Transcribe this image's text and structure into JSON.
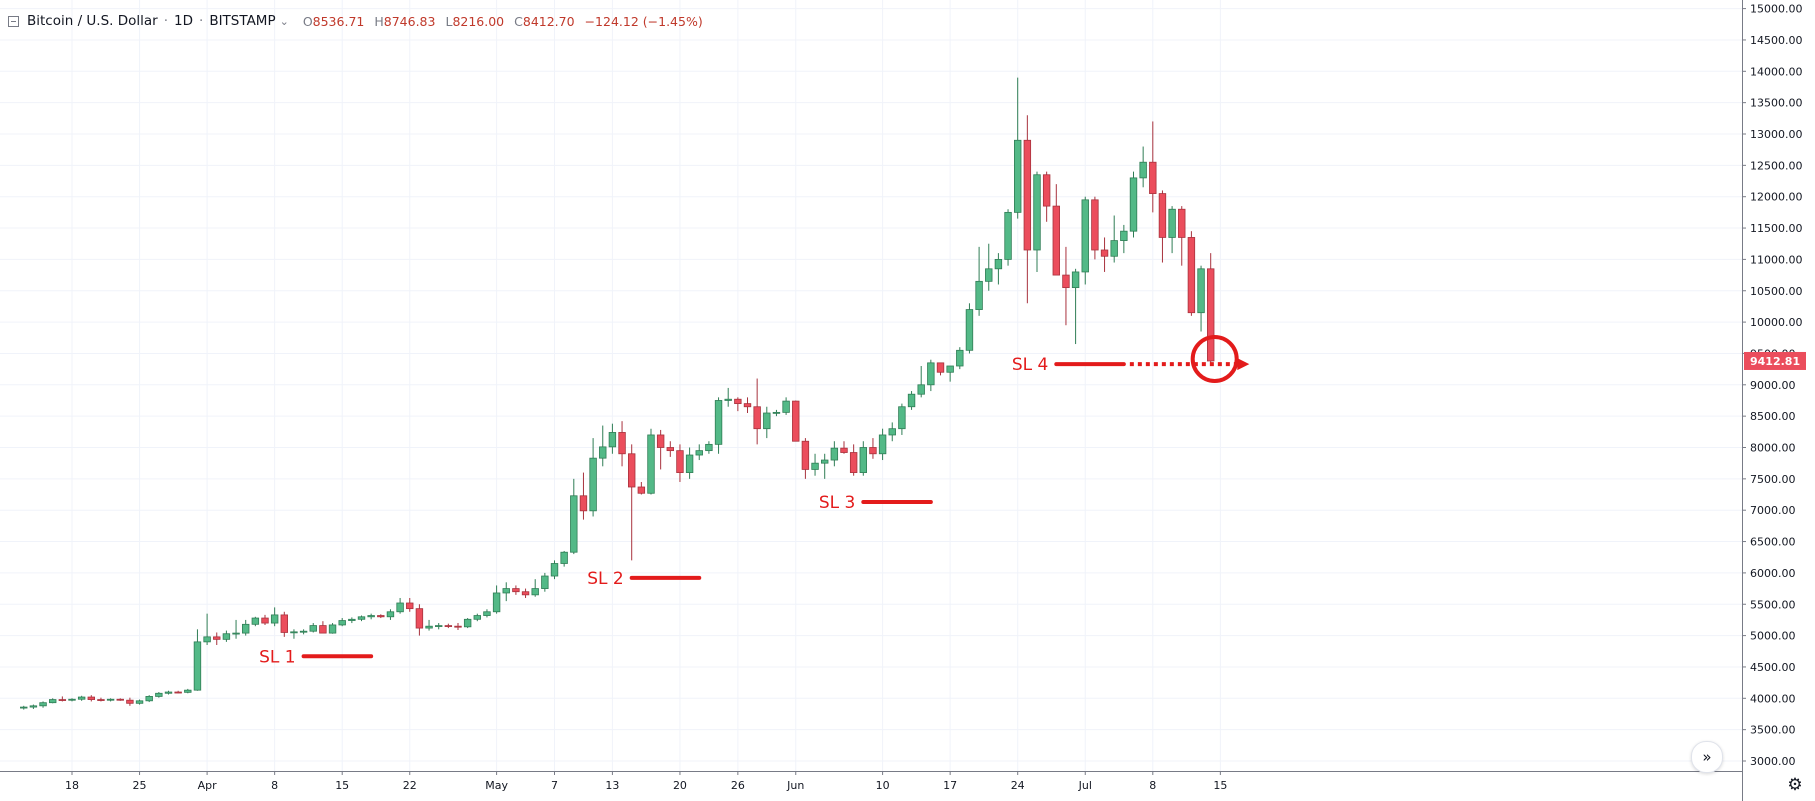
{
  "header": {
    "symbol": "Bitcoin / U.S. Dollar",
    "interval": "1D",
    "exchange": "BITSTAMP",
    "o": "8536.71",
    "h": "8746.83",
    "l": "8216.00",
    "c": "8412.70",
    "change": "−124.12 (−1.45%)",
    "o_label": "O",
    "h_label": "H",
    "l_label": "L",
    "c_label": "C"
  },
  "colors": {
    "up": "#53b987",
    "up_border": "#2f7d55",
    "down": "#eb4d5c",
    "down_border": "#a8323d",
    "grid": "#f0f3fa",
    "annotation": "#e31b1b"
  },
  "icons": {
    "collapse": "collapse-icon",
    "scroll": "scroll-right-icon",
    "settings": "gear-icon"
  },
  "chart_data": {
    "type": "candlestick",
    "ylim": [
      3000,
      15000
    ],
    "y_ticks": [
      "3000.00",
      "3500.00",
      "4000.00",
      "4500.00",
      "5000.00",
      "5500.00",
      "6000.00",
      "6500.00",
      "7000.00",
      "7500.00",
      "8000.00",
      "8500.00",
      "9000.00",
      "9500.00",
      "10000.00",
      "10500.00",
      "11000.00",
      "11500.00",
      "12000.00",
      "12500.00",
      "13000.00",
      "13500.00",
      "14000.00",
      "14500.00",
      "15000.00"
    ],
    "x_labels": [
      {
        "label": "18",
        "index": 0
      },
      {
        "label": "25",
        "index": 7
      },
      {
        "label": "Apr",
        "index": 14
      },
      {
        "label": "8",
        "index": 21
      },
      {
        "label": "15",
        "index": 28
      },
      {
        "label": "22",
        "index": 35
      },
      {
        "label": "May",
        "index": 44
      },
      {
        "label": "7",
        "index": 50
      },
      {
        "label": "13",
        "index": 56
      },
      {
        "label": "20",
        "index": 63
      },
      {
        "label": "26",
        "index": 69
      },
      {
        "label": "Jun",
        "index": 75
      },
      {
        "label": "10",
        "index": 84
      },
      {
        "label": "17",
        "index": 91
      },
      {
        "label": "24",
        "index": 98
      },
      {
        "label": "Jul",
        "index": 105
      },
      {
        "label": "8",
        "index": 112
      },
      {
        "label": "15",
        "index": 119
      }
    ],
    "first_index": -5,
    "candles": [
      {
        "o": 3850,
        "h": 3880,
        "l": 3820,
        "c": 3860
      },
      {
        "o": 3860,
        "h": 3900,
        "l": 3830,
        "c": 3880
      },
      {
        "o": 3880,
        "h": 3950,
        "l": 3850,
        "c": 3930
      },
      {
        "o": 3930,
        "h": 4000,
        "l": 3920,
        "c": 3980
      },
      {
        "o": 3980,
        "h": 4030,
        "l": 3950,
        "c": 3970
      },
      {
        "o": 3970,
        "h": 4000,
        "l": 3950,
        "c": 3985
      },
      {
        "o": 3985,
        "h": 4040,
        "l": 3960,
        "c": 4020
      },
      {
        "o": 4020,
        "h": 4050,
        "l": 3950,
        "c": 3980
      },
      {
        "o": 3980,
        "h": 4010,
        "l": 3950,
        "c": 3975
      },
      {
        "o": 3975,
        "h": 4000,
        "l": 3950,
        "c": 3985
      },
      {
        "o": 3985,
        "h": 4000,
        "l": 3960,
        "c": 3970
      },
      {
        "o": 3970,
        "h": 4010,
        "l": 3880,
        "c": 3920
      },
      {
        "o": 3920,
        "h": 3980,
        "l": 3900,
        "c": 3960
      },
      {
        "o": 3960,
        "h": 4050,
        "l": 3940,
        "c": 4030
      },
      {
        "o": 4030,
        "h": 4100,
        "l": 4010,
        "c": 4080
      },
      {
        "o": 4080,
        "h": 4120,
        "l": 4060,
        "c": 4100
      },
      {
        "o": 4100,
        "h": 4120,
        "l": 4080,
        "c": 4095
      },
      {
        "o": 4095,
        "h": 4150,
        "l": 4080,
        "c": 4130
      },
      {
        "o": 4130,
        "h": 5100,
        "l": 4120,
        "c": 4900
      },
      {
        "o": 4900,
        "h": 5350,
        "l": 4850,
        "c": 4980
      },
      {
        "o": 4980,
        "h": 5050,
        "l": 4850,
        "c": 4940
      },
      {
        "o": 4940,
        "h": 5080,
        "l": 4900,
        "c": 5030
      },
      {
        "o": 5030,
        "h": 5250,
        "l": 4950,
        "c": 5040
      },
      {
        "o": 5040,
        "h": 5250,
        "l": 5000,
        "c": 5180
      },
      {
        "o": 5180,
        "h": 5300,
        "l": 5150,
        "c": 5280
      },
      {
        "o": 5280,
        "h": 5330,
        "l": 5170,
        "c": 5200
      },
      {
        "o": 5200,
        "h": 5450,
        "l": 5150,
        "c": 5330
      },
      {
        "o": 5330,
        "h": 5380,
        "l": 4980,
        "c": 5050
      },
      {
        "o": 5050,
        "h": 5100,
        "l": 4950,
        "c": 5060
      },
      {
        "o": 5060,
        "h": 5100,
        "l": 5020,
        "c": 5070
      },
      {
        "o": 5070,
        "h": 5200,
        "l": 5050,
        "c": 5160
      },
      {
        "o": 5160,
        "h": 5230,
        "l": 5060,
        "c": 5040
      },
      {
        "o": 5040,
        "h": 5200,
        "l": 5030,
        "c": 5170
      },
      {
        "o": 5170,
        "h": 5280,
        "l": 5150,
        "c": 5240
      },
      {
        "o": 5240,
        "h": 5290,
        "l": 5200,
        "c": 5260
      },
      {
        "o": 5260,
        "h": 5320,
        "l": 5230,
        "c": 5300
      },
      {
        "o": 5300,
        "h": 5350,
        "l": 5260,
        "c": 5320
      },
      {
        "o": 5320,
        "h": 5340,
        "l": 5280,
        "c": 5300
      },
      {
        "o": 5300,
        "h": 5420,
        "l": 5250,
        "c": 5380
      },
      {
        "o": 5380,
        "h": 5600,
        "l": 5350,
        "c": 5520
      },
      {
        "o": 5520,
        "h": 5600,
        "l": 5380,
        "c": 5430
      },
      {
        "o": 5430,
        "h": 5500,
        "l": 5000,
        "c": 5120
      },
      {
        "o": 5120,
        "h": 5250,
        "l": 5080,
        "c": 5150
      },
      {
        "o": 5150,
        "h": 5200,
        "l": 5100,
        "c": 5160
      },
      {
        "o": 5160,
        "h": 5190,
        "l": 5120,
        "c": 5150
      },
      {
        "o": 5150,
        "h": 5200,
        "l": 5090,
        "c": 5140
      },
      {
        "o": 5140,
        "h": 5280,
        "l": 5120,
        "c": 5260
      },
      {
        "o": 5260,
        "h": 5350,
        "l": 5230,
        "c": 5320
      },
      {
        "o": 5320,
        "h": 5420,
        "l": 5290,
        "c": 5380
      },
      {
        "o": 5380,
        "h": 5800,
        "l": 5350,
        "c": 5680
      },
      {
        "o": 5680,
        "h": 5850,
        "l": 5550,
        "c": 5750
      },
      {
        "o": 5750,
        "h": 5800,
        "l": 5650,
        "c": 5700
      },
      {
        "o": 5700,
        "h": 5750,
        "l": 5600,
        "c": 5650
      },
      {
        "o": 5650,
        "h": 5900,
        "l": 5620,
        "c": 5750
      },
      {
        "o": 5750,
        "h": 6000,
        "l": 5700,
        "c": 5950
      },
      {
        "o": 5950,
        "h": 6200,
        "l": 5900,
        "c": 6150
      },
      {
        "o": 6150,
        "h": 6350,
        "l": 6100,
        "c": 6330
      },
      {
        "o": 6330,
        "h": 7500,
        "l": 6300,
        "c": 7230
      },
      {
        "o": 7230,
        "h": 7600,
        "l": 6850,
        "c": 6990
      },
      {
        "o": 6990,
        "h": 8150,
        "l": 6900,
        "c": 7830
      },
      {
        "o": 7830,
        "h": 8350,
        "l": 7700,
        "c": 8010
      },
      {
        "o": 8010,
        "h": 8380,
        "l": 7900,
        "c": 8240
      },
      {
        "o": 8240,
        "h": 8420,
        "l": 7700,
        "c": 7900
      },
      {
        "o": 7900,
        "h": 8050,
        "l": 6200,
        "c": 7370
      },
      {
        "o": 7370,
        "h": 7450,
        "l": 7250,
        "c": 7270
      },
      {
        "o": 7270,
        "h": 8300,
        "l": 7250,
        "c": 8200
      },
      {
        "o": 8200,
        "h": 8280,
        "l": 7650,
        "c": 8000
      },
      {
        "o": 8000,
        "h": 8100,
        "l": 7850,
        "c": 7950
      },
      {
        "o": 7950,
        "h": 8050,
        "l": 7450,
        "c": 7600
      },
      {
        "o": 7600,
        "h": 8000,
        "l": 7500,
        "c": 7880
      },
      {
        "o": 7880,
        "h": 8050,
        "l": 7800,
        "c": 7950
      },
      {
        "o": 7950,
        "h": 8100,
        "l": 7900,
        "c": 8050
      },
      {
        "o": 8050,
        "h": 8800,
        "l": 7900,
        "c": 8750
      },
      {
        "o": 8750,
        "h": 8950,
        "l": 8650,
        "c": 8770
      },
      {
        "o": 8770,
        "h": 8800,
        "l": 8580,
        "c": 8700
      },
      {
        "o": 8700,
        "h": 8800,
        "l": 8550,
        "c": 8650
      },
      {
        "o": 8650,
        "h": 9100,
        "l": 8050,
        "c": 8300
      },
      {
        "o": 8300,
        "h": 8650,
        "l": 8150,
        "c": 8550
      },
      {
        "o": 8550,
        "h": 8600,
        "l": 8500,
        "c": 8560
      },
      {
        "o": 8560,
        "h": 8800,
        "l": 8520,
        "c": 8740
      },
      {
        "o": 8740,
        "h": 8750,
        "l": 8100,
        "c": 8100
      },
      {
        "o": 8100,
        "h": 8150,
        "l": 7500,
        "c": 7650
      },
      {
        "o": 7650,
        "h": 7900,
        "l": 7550,
        "c": 7750
      },
      {
        "o": 7750,
        "h": 7900,
        "l": 7500,
        "c": 7800
      },
      {
        "o": 7800,
        "h": 8100,
        "l": 7700,
        "c": 7990
      },
      {
        "o": 7990,
        "h": 8100,
        "l": 7900,
        "c": 7920
      },
      {
        "o": 7920,
        "h": 8050,
        "l": 7550,
        "c": 7600
      },
      {
        "o": 7600,
        "h": 8100,
        "l": 7550,
        "c": 8000
      },
      {
        "o": 8000,
        "h": 8150,
        "l": 7820,
        "c": 7900
      },
      {
        "o": 7900,
        "h": 8300,
        "l": 7800,
        "c": 8200
      },
      {
        "o": 8200,
        "h": 8400,
        "l": 8100,
        "c": 8300
      },
      {
        "o": 8300,
        "h": 8700,
        "l": 8200,
        "c": 8650
      },
      {
        "o": 8650,
        "h": 8900,
        "l": 8600,
        "c": 8850
      },
      {
        "o": 8850,
        "h": 9300,
        "l": 8800,
        "c": 9000
      },
      {
        "o": 9000,
        "h": 9400,
        "l": 8900,
        "c": 9350
      },
      {
        "o": 9350,
        "h": 9350,
        "l": 9150,
        "c": 9200
      },
      {
        "o": 9200,
        "h": 9300,
        "l": 9050,
        "c": 9300
      },
      {
        "o": 9300,
        "h": 9600,
        "l": 9250,
        "c": 9550
      },
      {
        "o": 9550,
        "h": 10300,
        "l": 9500,
        "c": 10200
      },
      {
        "o": 10200,
        "h": 11200,
        "l": 10100,
        "c": 10650
      },
      {
        "o": 10650,
        "h": 11250,
        "l": 10500,
        "c": 10850
      },
      {
        "o": 10850,
        "h": 11100,
        "l": 10600,
        "c": 11000
      },
      {
        "o": 11000,
        "h": 11800,
        "l": 10900,
        "c": 11750
      },
      {
        "o": 11750,
        "h": 13900,
        "l": 11650,
        "c": 12900
      },
      {
        "o": 12900,
        "h": 13300,
        "l": 10300,
        "c": 11150
      },
      {
        "o": 11150,
        "h": 12400,
        "l": 10800,
        "c": 12350
      },
      {
        "o": 12350,
        "h": 12400,
        "l": 11600,
        "c": 11850
      },
      {
        "o": 11850,
        "h": 12200,
        "l": 10750,
        "c": 10750
      },
      {
        "o": 10750,
        "h": 11200,
        "l": 9950,
        "c": 10550
      },
      {
        "o": 10550,
        "h": 10850,
        "l": 9650,
        "c": 10800
      },
      {
        "o": 10800,
        "h": 12000,
        "l": 10600,
        "c": 11950
      },
      {
        "o": 11950,
        "h": 12000,
        "l": 11000,
        "c": 11150
      },
      {
        "o": 11150,
        "h": 11350,
        "l": 10800,
        "c": 11050
      },
      {
        "o": 11050,
        "h": 11700,
        "l": 10950,
        "c": 11300
      },
      {
        "o": 11300,
        "h": 11550,
        "l": 11100,
        "c": 11450
      },
      {
        "o": 11450,
        "h": 12400,
        "l": 11350,
        "c": 12300
      },
      {
        "o": 12300,
        "h": 12800,
        "l": 12150,
        "c": 12550
      },
      {
        "o": 12550,
        "h": 13200,
        "l": 11750,
        "c": 12050
      },
      {
        "o": 12050,
        "h": 12100,
        "l": 10950,
        "c": 11350
      },
      {
        "o": 11350,
        "h": 11850,
        "l": 11100,
        "c": 11800
      },
      {
        "o": 11800,
        "h": 11850,
        "l": 10900,
        "c": 11350
      },
      {
        "o": 11350,
        "h": 11450,
        "l": 10100,
        "c": 10150
      },
      {
        "o": 10150,
        "h": 10900,
        "l": 9850,
        "c": 10850
      },
      {
        "o": 10850,
        "h": 11100,
        "l": 9350,
        "c": 9380
      }
    ],
    "last_price_label": "9412.81",
    "annotations": [
      {
        "label": "SL 1",
        "price": 4670,
        "line_from_index": 24,
        "line_to_index": 31
      },
      {
        "label": "SL 2",
        "price": 5920,
        "line_from_index": 58,
        "line_to_index": 65
      },
      {
        "label": "SL 3",
        "price": 7130,
        "line_from_index": 82,
        "line_to_index": 89
      },
      {
        "label": "SL 4",
        "price": 9330,
        "line_from_index": 102,
        "line_to_index": 109,
        "arrow_to_index": 122
      }
    ]
  }
}
